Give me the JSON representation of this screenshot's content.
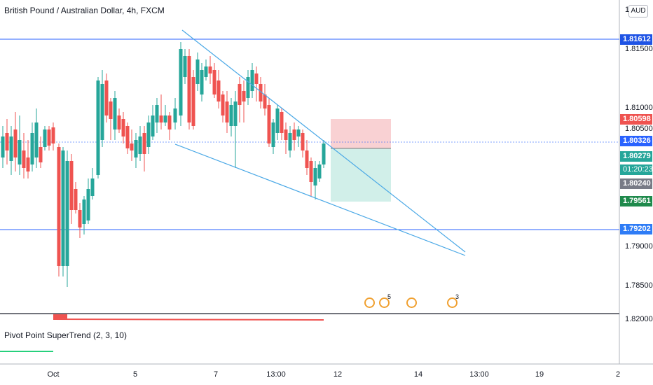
{
  "symbol_title": "British Pound / Australian Dollar, 4h, FXCM",
  "currency_button": "AUD",
  "indicator_title": "Pivot Point SuperTrend (2, 3, 10)",
  "price_axis": {
    "ticks": [
      "1.81500",
      "1.81000",
      "1.80500",
      "1.79000",
      "1.78500",
      "1.82000"
    ],
    "top_partial": "1"
  },
  "price_tags": {
    "resistance": "1.81612",
    "stop": "1.80598",
    "current": "1.80326",
    "entry": "1.80279",
    "countdown": "01:20:23",
    "low_mark": "1.80240",
    "target": "1.79561",
    "support": "1.79202"
  },
  "time_axis": [
    "Oct",
    "5",
    "7",
    "13:00",
    "12",
    "14",
    "13:00",
    "19",
    "2"
  ],
  "events": [
    {
      "icon": "uk-flag-icon",
      "count": ""
    },
    {
      "icon": "uk-flag-icon",
      "count": "5"
    },
    {
      "icon": "au-flag-icon",
      "count": ""
    },
    {
      "icon": "au-flag-icon",
      "count": "3"
    }
  ],
  "colors": {
    "up": "#26a69a",
    "down": "#ef5350",
    "hline": "#2962ff",
    "trend": "#4aa8e6",
    "stop_zone": "#f7c5c8",
    "target_zone": "#c5ebe4",
    "supertrend_red": "#ef5350",
    "supertrend_green": "#26d07c"
  }
}
